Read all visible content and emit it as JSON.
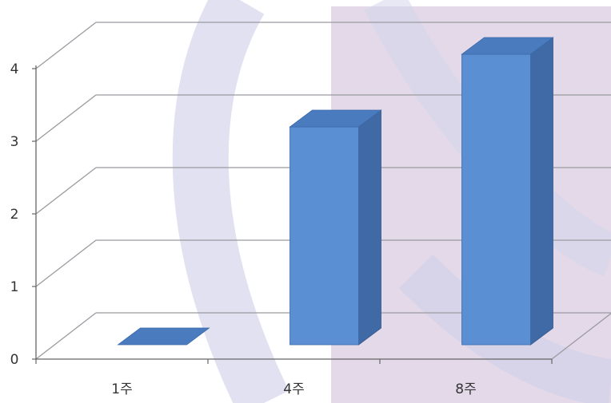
{
  "chart_data": {
    "type": "bar",
    "style": "3d-column",
    "categories": [
      "1주",
      "4주",
      "8주"
    ],
    "values": [
      0,
      3,
      4
    ],
    "ylim": [
      0,
      4
    ],
    "yticks": [
      "0",
      "1",
      "2",
      "3",
      "4"
    ],
    "grid": true,
    "legend": "none",
    "title": "",
    "xlabel": "",
    "ylabel": ""
  },
  "colors": {
    "bar_front": "#5b8fd4",
    "bar_side": "#3f6aa6",
    "bar_top": "#4a7bbf",
    "grid": "#9a9aa0",
    "background_panel": "#e3d9e9"
  }
}
